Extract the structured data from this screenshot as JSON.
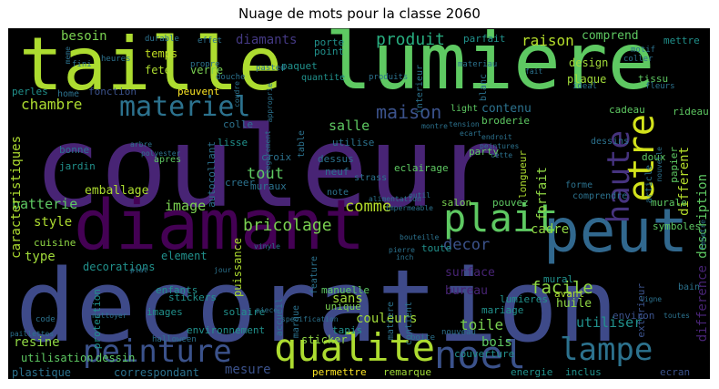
{
  "title": "Nuage de mots pour la classe 2060",
  "palette": {
    "background": "#000000",
    "dark_purple": "#482475",
    "purple": "#440154",
    "indigo": "#3b528b",
    "blue": "#2c728e",
    "teal": "#21918c",
    "green": "#28ae80",
    "light_green": "#5ec962",
    "lime": "#addc30",
    "yellow": "#fde725"
  },
  "words": {
    "couleur": "couleur",
    "decoration": "decoration",
    "lumiere": "lumiere",
    "taille": "taille",
    "diamant": "diamant",
    "peut": "peut",
    "plait": "plait",
    "qualite": "qualite",
    "peinture": "peinture",
    "noel": "noel",
    "lampe": "lampe",
    "etre": "etre",
    "haute": "haute",
    "materiel": "materiel",
    "produit": "produit",
    "raison": "raison",
    "diamants": "diamants",
    "besoin": "besoin",
    "chambre": "chambre",
    "maison": "maison",
    "salle": "salle",
    "bricolage": "bricolage",
    "decor": "decor",
    "facile": "facile",
    "comme": "comme",
    "tout": "tout",
    "image": "image",
    "style": "style",
    "batterie": "batterie",
    "caracteristiques": "caracteristiques",
    "type": "type",
    "couleurs": "couleurs",
    "toile": "toile",
    "bois": "bois",
    "mesure": "mesure",
    "resine": "resine",
    "utiliser": "utiliser",
    "difference": "difference",
    "description": "description",
    "different": "different",
    "forfait": "forfait",
    "cadre": "cadre",
    "surface": "surface",
    "bureau": "bureau",
    "sans": "sans",
    "comprend": "comprend",
    "design": "design",
    "plaque": "plaque",
    "tissu": "tissu",
    "contenu": "contenu",
    "temps": "temps",
    "fete": "fete",
    "verre": "verre",
    "perles": "perles",
    "home": "home",
    "fonction": "fonction",
    "peuvent": "peuvent",
    "apres": "apres",
    "lisse": "lisse",
    "jardin": "jardin",
    "bonne": "bonne",
    "emballage": "emballage",
    "cuisine": "cuisine",
    "decorations": "decorations",
    "element": "element",
    "puissance": "puissance",
    "enfants": "enfants",
    "protection": "protection",
    "images": "images",
    "stickers": "stickers",
    "solaire": "solaire",
    "environnement": "environnement",
    "sticker": "sticker",
    "utilisation": "utilisation",
    "dessin": "dessin",
    "plastique": "plastique",
    "correspondant": "correspondant",
    "manuelle": "manuelle",
    "unique": "unique",
    "tapis": "tapis",
    "mariage": "mariage",
    "huile": "huile",
    "avant": "avant",
    "mural": "mural",
    "lumieres": "lumieres",
    "couverture": "couverture",
    "permettre": "permettre",
    "remarque": "remarque",
    "energie": "energie",
    "inclus": "inclus",
    "ecran": "ecran",
    "environ": "environ",
    "exterieur": "exterieur",
    "salon": "salon",
    "pouvez": "pouvez",
    "toute": "toute",
    "eclairage": "eclairage",
    "party": "party",
    "longueur": "longueur",
    "murale": "murale",
    "symboles": "symboles",
    "papier": "papier",
    "doux": "doux",
    "rideau": "rideau",
    "cadeau": "cadeau",
    "broderie": "broderie",
    "light": "light",
    "point": "point",
    "paquet": "paquet",
    "porte": "porte",
    "parfait": "parfait",
    "mettre": "mettre",
    "quantite": "quantite",
    "utilise": "utilise",
    "dessus": "dessus",
    "neuf": "neuf",
    "croix": "croix",
    "muraux": "muraux",
    "creer": "creer",
    "autocollant": "autocollant",
    "note": "note",
    "colle": "colle",
    "interieur": "interieur",
    "blanc": "blanc",
    "feature": "feature",
    "contient": "contient",
    "matiere": "matiere",
    "accueil": "accueil",
    "marque": "marque",
    "bain": "bain",
    "forme": "forme",
    "comprendre": "comprendre",
    "article": "article",
    "dessins": "dessins",
    "table": "table",
    "strass": "strass",
    "fleurs": "fleurs",
    "ideal": "ideal",
    "coller": "coller",
    "motif": "motif",
    "materiau": "materiau",
    "produits": "produits",
    "propre": "propre",
    "effet": "effet",
    "durable": "durable",
    "heures": "heures",
    "douche": "douche",
    "pasted": "pasted",
    "nouveau": "nouveau",
    "boite": "boite",
    "halloween": "halloween",
    "code": "code",
    "paillettes": "paillettes",
    "fini": "fini",
    "plat": "plat",
    "jour": "jour",
    "pierre": "pierre",
    "inch": "inch",
    "bouteille": "bouteille",
    "outil": "outil",
    "alimentation": "alimentation",
    "impermeable": "impermeable",
    "arbre": "arbre",
    "polyester": "polyester",
    "vinyle": "vinyle",
    "montre": "montre",
    "tension": "tension",
    "ecart": "ecart",
    "endroit": "endroit",
    "peintures": "peintures",
    "cette": "cette",
    "fait": "fait",
    "ligne": "ligne",
    "toutes": "toutes",
    "piece": "piece",
    "specification": "specification",
    "nettoyer": "nettoyer",
    "nouvelle": "nouvelle",
    "fenetre": "fenetre",
    "legerement": "legerement",
    "approprie": "approprie",
    "meme": "meme",
    "coudre": "coudre"
  }
}
